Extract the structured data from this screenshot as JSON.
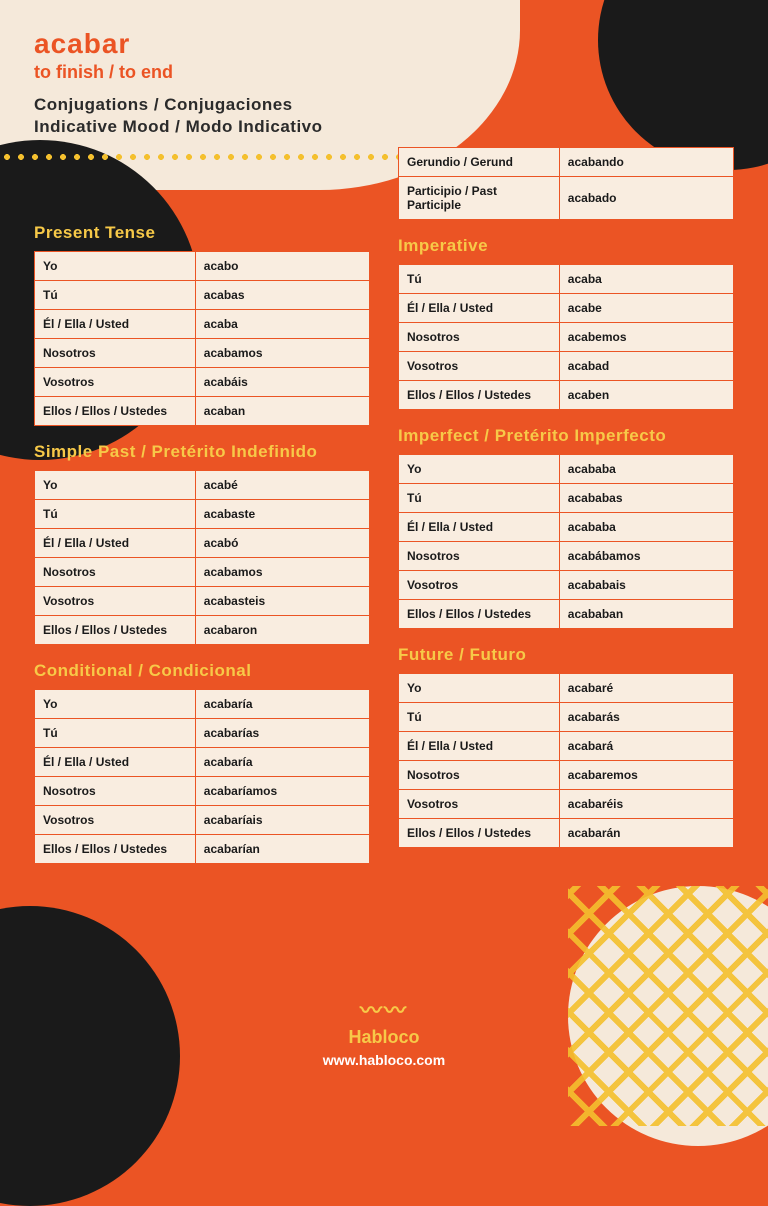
{
  "colors": {
    "accent_orange": "#eb5424",
    "cream": "#f5e9da",
    "table_bg": "#f9ede0",
    "black": "#1a1a1a",
    "yellow": "#f7c948",
    "white": "#ffffff"
  },
  "header": {
    "verb": "acabar",
    "translation": "to finish / to end",
    "line1": "Conjugations / Conjugaciones",
    "line2": "Indicative Mood / Modo Indicativo"
  },
  "nonfinite": {
    "gerund_label": "Gerundio / Gerund",
    "gerund_value": "acabando",
    "participle_label": "Participio / Past Participle",
    "participle_value": "acabado"
  },
  "pronouns6": [
    "Yo",
    "Tú",
    "Él / Ella / Usted",
    "Nosotros",
    "Vosotros",
    "Ellos / Ellos / Ustedes"
  ],
  "pronouns5": [
    "Tú",
    "Él / Ella / Usted",
    "Nosotros",
    "Vosotros",
    "Ellos / Ellos / Ustedes"
  ],
  "tenses": {
    "present": {
      "title": "Present Tense",
      "forms": [
        "acabo",
        "acabas",
        "acaba",
        "acabamos",
        "acabáis",
        "acaban"
      ]
    },
    "imperative": {
      "title": "Imperative",
      "forms": [
        "acaba",
        "acabe",
        "acabemos",
        "acabad",
        "acaben"
      ]
    },
    "simple_past": {
      "title": "Simple Past / Pretérito Indefinido",
      "forms": [
        "acabé",
        "acabaste",
        "acabó",
        "acabamos",
        "acabasteis",
        "acabaron"
      ]
    },
    "imperfect": {
      "title": "Imperfect / Pretérito Imperfecto",
      "forms": [
        "acababa",
        "acababas",
        "acababa",
        "acabábamos",
        "acababais",
        "acababan"
      ]
    },
    "conditional": {
      "title": "Conditional / Condicional",
      "forms": [
        "acabaría",
        "acabarías",
        "acabaría",
        "acabaríamos",
        "acabaríais",
        "acabarían"
      ]
    },
    "future": {
      "title": "Future / Futuro",
      "forms": [
        "acabaré",
        "acabarás",
        "acabará",
        "acabaremos",
        "acabaréis",
        "acabarán"
      ]
    }
  },
  "footer": {
    "brand": "Habloco",
    "url": "www.habloco.com"
  }
}
